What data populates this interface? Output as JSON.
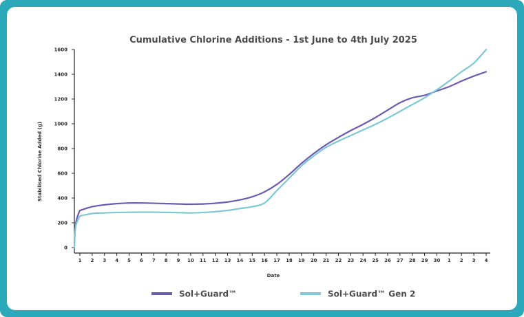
{
  "chart_data": {
    "type": "line",
    "title": "Cumulative Chlorine Additions - 1st June to 4th July 2025",
    "xlabel": "Date",
    "ylabel": "Stabilised Chlorine Added (g)",
    "ylim": [
      0,
      1600
    ],
    "yticks": [
      0,
      200,
      400,
      600,
      800,
      1000,
      1200,
      1400,
      1600
    ],
    "categories": [
      "1",
      "2",
      "3",
      "4",
      "5",
      "6",
      "7",
      "8",
      "9",
      "10",
      "11",
      "12",
      "13",
      "14",
      "15",
      "16",
      "17",
      "18",
      "19",
      "20",
      "21",
      "22",
      "23",
      "24",
      "25",
      "26",
      "27",
      "28",
      "29",
      "30",
      "1",
      "2",
      "3",
      "4"
    ],
    "legend_position": "bottom",
    "grid": false,
    "series": [
      {
        "name": "Sol+Guard™",
        "color": "#6a5bb0",
        "values": [
          300,
          330,
          345,
          355,
          360,
          360,
          358,
          355,
          352,
          350,
          352,
          358,
          368,
          385,
          410,
          450,
          510,
          590,
          680,
          760,
          830,
          890,
          945,
          995,
          1050,
          1110,
          1170,
          1210,
          1230,
          1265,
          1300,
          1345,
          1385,
          1420
        ]
      },
      {
        "name": "Sol+Guard™ Gen 2",
        "color": "#7ec7d4",
        "values": [
          255,
          275,
          280,
          283,
          285,
          286,
          286,
          284,
          282,
          280,
          283,
          290,
          300,
          315,
          330,
          360,
          460,
          560,
          660,
          740,
          810,
          860,
          905,
          950,
          995,
          1045,
          1100,
          1155,
          1210,
          1275,
          1345,
          1420,
          1490,
          1600
        ]
      }
    ]
  }
}
